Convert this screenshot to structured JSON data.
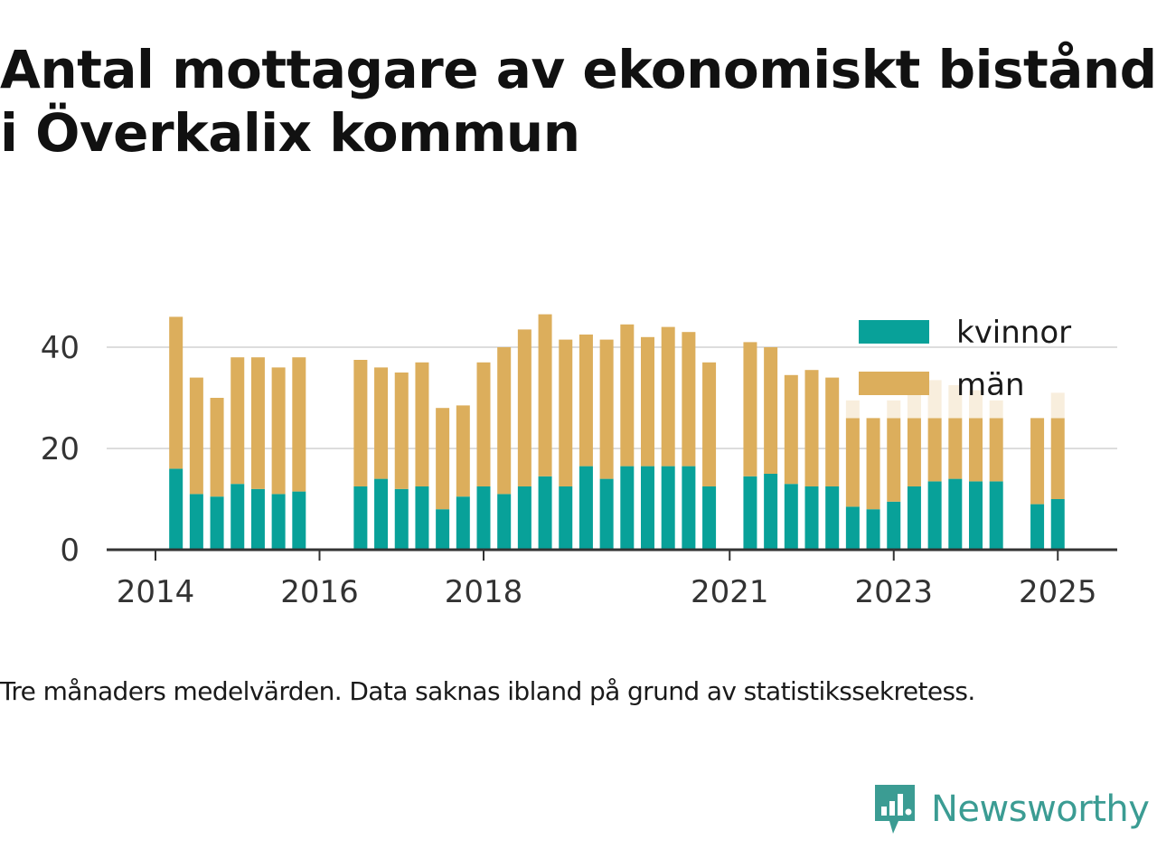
{
  "title": "Antal mottagare av ekonomiskt bistånd i Överkalix kommun",
  "note": "Tre månaders medelvärden. Data saknas ibland på grund av statistikssekretess.",
  "logo": {
    "text": "Newsworthy",
    "icon": "newsworthy-logo-icon",
    "color": "#3b9c93"
  },
  "colors": {
    "kvinnor": "#08a199",
    "man": "#dcae5c",
    "man_faded": "#f8eedd",
    "axis": "#333333",
    "grid": "#dddddd"
  },
  "chart_data": {
    "type": "bar",
    "stacked": true,
    "title": "Antal mottagare av ekonomiskt bistånd i Överkalix kommun",
    "xlabel": "",
    "ylabel": "",
    "ylim": [
      0,
      48
    ],
    "yticks": [
      0,
      20,
      40
    ],
    "xticks": [
      "2014",
      "2016",
      "2018",
      "2021",
      "2023",
      "2025"
    ],
    "grid": true,
    "legend": "top-right",
    "series": [
      {
        "name": "kvinnor",
        "color": "#08a199"
      },
      {
        "name": "män",
        "color": "#dcae5c"
      }
    ],
    "bars": [
      {
        "x": "2014-04",
        "kvinnor": 16,
        "man": 30
      },
      {
        "x": "2014-07",
        "kvinnor": 11,
        "man": 23
      },
      {
        "x": "2014-10",
        "kvinnor": 10.5,
        "man": 19.5
      },
      {
        "x": "2015-01",
        "kvinnor": 13,
        "man": 25
      },
      {
        "x": "2015-04",
        "kvinnor": 12,
        "man": 26
      },
      {
        "x": "2015-07",
        "kvinnor": 11,
        "man": 25
      },
      {
        "x": "2015-10",
        "kvinnor": 11.5,
        "man": 26.5
      },
      {
        "x": "2016-07",
        "kvinnor": 12.5,
        "man": 25
      },
      {
        "x": "2016-10",
        "kvinnor": 14,
        "man": 22
      },
      {
        "x": "2017-01",
        "kvinnor": 12,
        "man": 23
      },
      {
        "x": "2017-04",
        "kvinnor": 12.5,
        "man": 24.5
      },
      {
        "x": "2017-07",
        "kvinnor": 8,
        "man": 20
      },
      {
        "x": "2017-10",
        "kvinnor": 10.5,
        "man": 18
      },
      {
        "x": "2018-01",
        "kvinnor": 12.5,
        "man": 24.5
      },
      {
        "x": "2018-04",
        "kvinnor": 11,
        "man": 29
      },
      {
        "x": "2018-07",
        "kvinnor": 12.5,
        "man": 31
      },
      {
        "x": "2018-10",
        "kvinnor": 14.5,
        "man": 32
      },
      {
        "x": "2019-01",
        "kvinnor": 12.5,
        "man": 29
      },
      {
        "x": "2019-04",
        "kvinnor": 16.5,
        "man": 26
      },
      {
        "x": "2019-07",
        "kvinnor": 14,
        "man": 27.5
      },
      {
        "x": "2019-10",
        "kvinnor": 16.5,
        "man": 28
      },
      {
        "x": "2020-01",
        "kvinnor": 16.5,
        "man": 25.5
      },
      {
        "x": "2020-04",
        "kvinnor": 16.5,
        "man": 27.5
      },
      {
        "x": "2020-07",
        "kvinnor": 16.5,
        "man": 26.5
      },
      {
        "x": "2020-10",
        "kvinnor": 12.5,
        "man": 24.5
      },
      {
        "x": "2021-04",
        "kvinnor": 14.5,
        "man": 26.5
      },
      {
        "x": "2021-07",
        "kvinnor": 15,
        "man": 25
      },
      {
        "x": "2021-10",
        "kvinnor": 13,
        "man": 21.5
      },
      {
        "x": "2022-01",
        "kvinnor": 12.5,
        "man": 23
      },
      {
        "x": "2022-04",
        "kvinnor": 12.5,
        "man": 21.5
      },
      {
        "x": "2022-07",
        "kvinnor": 8.5,
        "man": 17.5,
        "man_faded": 3.5
      },
      {
        "x": "2022-10",
        "kvinnor": 8,
        "man": 18
      },
      {
        "x": "2023-01",
        "kvinnor": 9.5,
        "man": 16.5,
        "man_faded": 3.5
      },
      {
        "x": "2023-04",
        "kvinnor": 12.5,
        "man": 13.5,
        "man_faded": 7.5
      },
      {
        "x": "2023-07",
        "kvinnor": 13.5,
        "man": 12.5,
        "man_faded": 7.5
      },
      {
        "x": "2023-10",
        "kvinnor": 14,
        "man": 12,
        "man_faded": 6.5
      },
      {
        "x": "2024-01",
        "kvinnor": 13.5,
        "man": 12.5,
        "man_faded": 5.5
      },
      {
        "x": "2024-04",
        "kvinnor": 13.5,
        "man": 12.5,
        "man_faded": 3.5
      },
      {
        "x": "2024-10",
        "kvinnor": 9,
        "man": 17
      },
      {
        "x": "2025-01",
        "kvinnor": 10,
        "man": 16,
        "man_faded": 5
      }
    ]
  }
}
